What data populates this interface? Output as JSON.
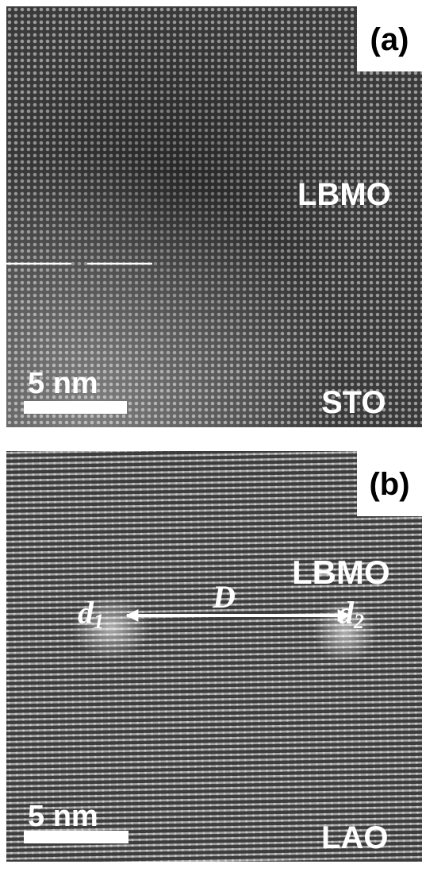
{
  "panel_a": {
    "label": "(a)",
    "film": "LBMO",
    "scale_bar": "5 nm",
    "substrate": "STO"
  },
  "panel_b": {
    "label": "(b)",
    "film": "LBMO",
    "markers": [
      {
        "base": "d",
        "sub": "1"
      },
      {
        "base": "D"
      },
      {
        "base": "d",
        "sub": "2"
      }
    ],
    "scale_bar": "5 nm",
    "substrate": "LAO"
  }
}
